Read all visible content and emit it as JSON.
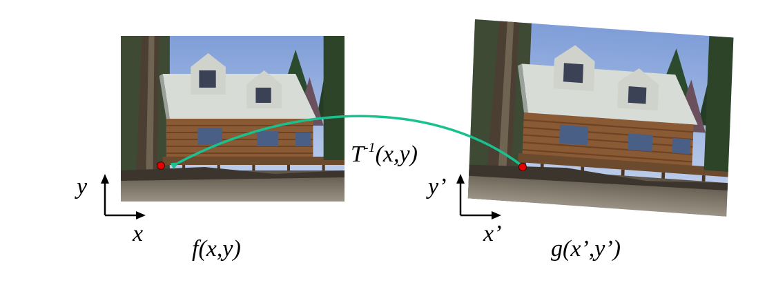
{
  "labels": {
    "src_axis_y": "y",
    "src_axis_x": "x",
    "src_caption": "f(x,y)",
    "dst_axis_y": "y’",
    "dst_axis_x": "x’",
    "dst_caption": "g(x’,y’)",
    "transform_base": "T",
    "transform_sup": "-1",
    "transform_args": "(x,y)"
  },
  "colors": {
    "arrow": "#19c18f",
    "point": "#e60000",
    "sky": "#9fb8e6",
    "house_wood": "#8a5a34",
    "roof": "#d9dcd7",
    "ground": "#7e786e"
  },
  "images": [
    {
      "name": "source-house-photo",
      "description": "house in trees, original"
    },
    {
      "name": "warped-house-photo",
      "description": "house in trees, rotated and skewed"
    }
  ]
}
